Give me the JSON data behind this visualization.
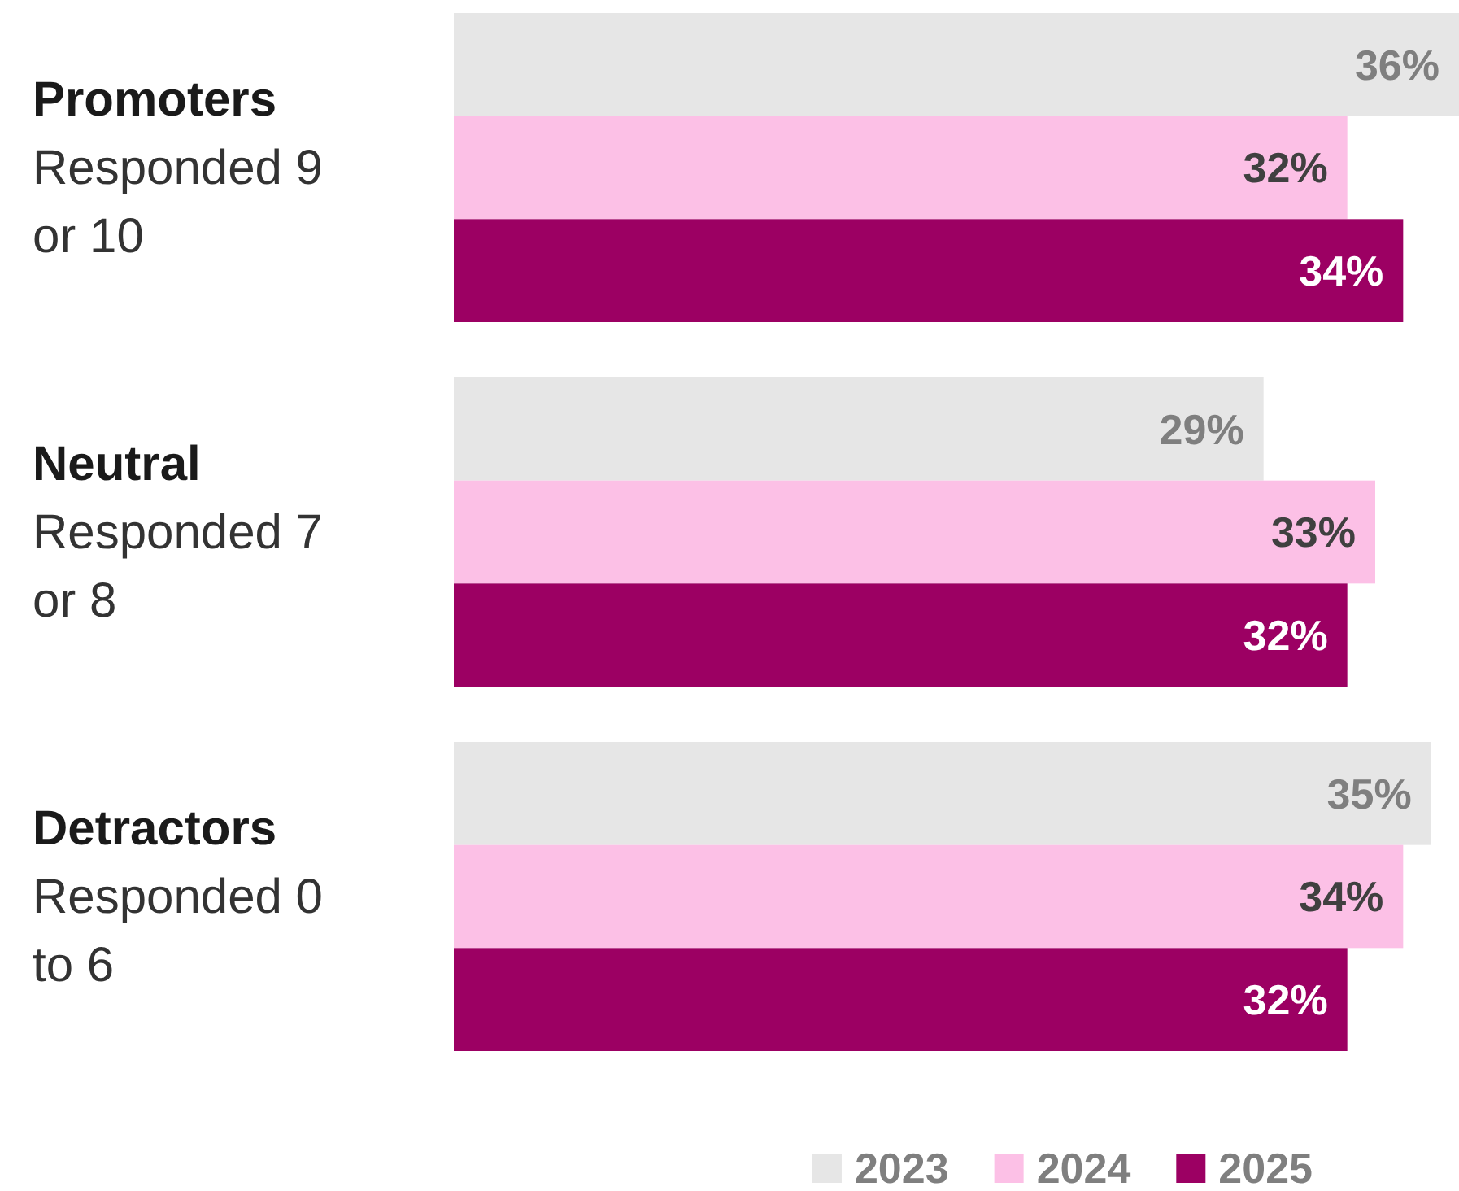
{
  "chart_data": {
    "type": "bar",
    "orientation": "horizontal",
    "categories": [
      "Promoters\nResponded 9\nor 10",
      "Neutral\nResponded 7\nor 8",
      "Detractors\nResponded 0\nto 6"
    ],
    "series": [
      {
        "name": "2023",
        "color": "#e6e6e6",
        "values": [
          36,
          29,
          35
        ],
        "value_labels": [
          "36%",
          "29%",
          "35%"
        ]
      },
      {
        "name": "2024",
        "color": "#fcc0e6",
        "values": [
          32,
          33,
          34
        ],
        "value_labels": [
          "32%",
          "33%",
          "34%"
        ]
      },
      {
        "name": "2025",
        "color": "#9c0063",
        "values": [
          34,
          32,
          32
        ],
        "value_labels": [
          "34%",
          "32%",
          "32%"
        ]
      }
    ],
    "xlim": [
      0,
      36
    ],
    "legend": "bottom right",
    "tick_labels": "y"
  }
}
